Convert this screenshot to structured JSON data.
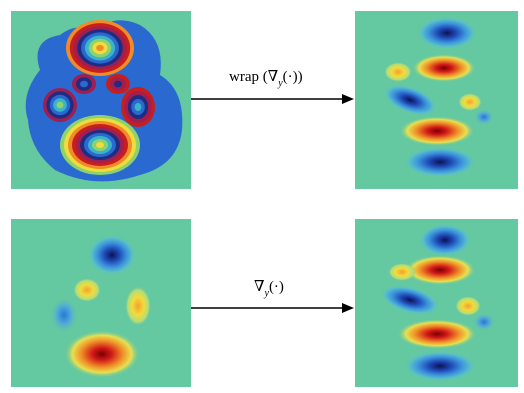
{
  "figure": {
    "top_arrow": {
      "text_pre": "wrap (∇",
      "sub": "y",
      "text_post": "(·))"
    },
    "bottom_arrow": {
      "text_pre": "∇",
      "sub": "y",
      "text_post": "(·)"
    },
    "colors": {
      "background": "#64c8a0",
      "red": "#c81e1e",
      "blue": "#1e3c96",
      "yellow": "#f0dc3c",
      "arrow": "#000000"
    }
  }
}
